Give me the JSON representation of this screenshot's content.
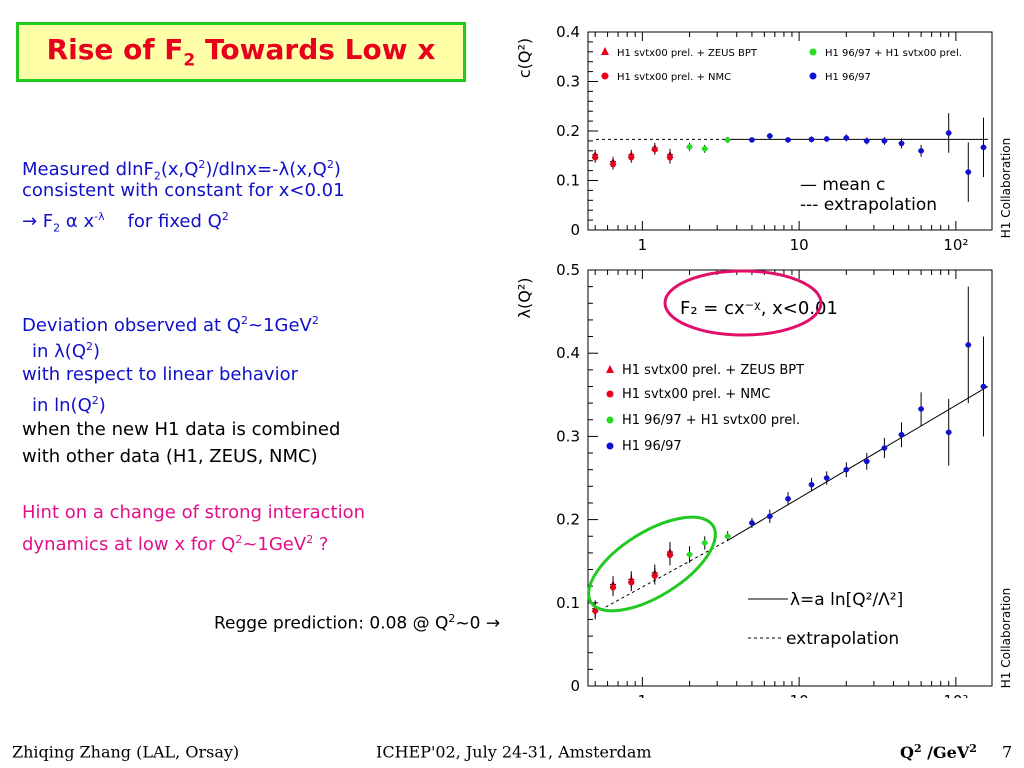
{
  "slide": {
    "title_main": "Rise of F",
    "title_sub": "2",
    "title_rest": " Towards Low x",
    "page_number": "7"
  },
  "text": {
    "p1_l1_a": "Measured dlnF",
    "p1_l1_b": "2",
    "p1_l1_c": "(x,Q",
    "p1_l1_d": "2",
    "p1_l1_e": ")/dlnx=-",
    "p1_l1_f": "λ",
    "p1_l1_g": "(x,Q",
    "p1_l1_h": "2",
    "p1_l1_i": ")",
    "p1_l2": "consistent with constant for x<0.01",
    "p1_l3_a": "→ F",
    "p1_l3_b": "2",
    "p1_l3_c": " α x",
    "p1_l3_d": "-λ",
    "p1_l3_e": "    for fixed Q",
    "p1_l3_f": "2",
    "p2_l1_a": "Deviation observed at Q",
    "p2_l1_b": "2",
    "p2_l1_c": "~1GeV",
    "p2_l1_d": "2",
    "p2_l2_a": "in ",
    "p2_l2_b": "λ",
    "p2_l2_c": "(Q",
    "p2_l2_d": "2",
    "p2_l2_e": ")",
    "p2_l3": "with respect to linear behavior",
    "p2_l4_a": "in ln(Q",
    "p2_l4_b": "2",
    "p2_l4_c": ")",
    "p2_l5": "when the new H1 data is combined",
    "p2_l6": "with other data (H1, ZEUS, NMC)",
    "p3_l1": "Hint on a change of strong interaction",
    "p3_l2_a": "dynamics at low x for Q",
    "p3_l2_b": "2",
    "p3_l2_c": "~1GeV",
    "p3_l2_d": "2",
    "p3_l2_e": " ?",
    "regge_a": "Regge prediction: 0.08 @ Q",
    "regge_b": "2",
    "regge_c": "~0 →"
  },
  "footer": {
    "author": "Zhiqing Zhang (LAL, Orsay)",
    "conference": "ICHEP'02, July 24-31, Amsterdam",
    "unit_a": "Q",
    "unit_b": "2",
    "unit_c": " /GeV",
    "unit_d": "2"
  },
  "colors": {
    "zeus": "#e8001c",
    "nmc": "#e8001c",
    "h1comb": "#22dd22",
    "h1": "#1010d0",
    "title": "#e8001c",
    "title_bg": "#ffffa8",
    "title_border": "#22c822",
    "ellipse_pink": "#e0106a",
    "ellipse_green": "#22c822"
  },
  "chart_data": [
    {
      "type": "scatter",
      "ylabel": "c(Q²)",
      "xscale": "log",
      "xlim": [
        0.45,
        170
      ],
      "ylim": [
        0,
        0.4
      ],
      "x_ticks": [
        "1",
        "10",
        "10²"
      ],
      "y_ticks": [
        "0",
        "0.1",
        "0.2",
        "0.3",
        "0.4"
      ],
      "collaboration": "H1 Collaboration",
      "legend": [
        "H1 svtx00 prel. + ZEUS BPT",
        "H1 svtx00 prel. + NMC",
        "H1 96/97 + H1 svtx00 prel.",
        "H1 96/97"
      ],
      "lines": [
        "— mean c",
        "--- extrapolation"
      ],
      "mean_c": 0.183,
      "series": [
        {
          "name": "H1 svtx00 prel. + ZEUS BPT",
          "marker": "triangle",
          "color": "#e8001c",
          "x": [
            0.5,
            0.65,
            0.85,
            1.2,
            1.5
          ],
          "y": [
            0.152,
            0.138,
            0.152,
            0.166,
            0.152
          ],
          "err": [
            0.01,
            0.01,
            0.01,
            0.01,
            0.012
          ]
        },
        {
          "name": "H1 svtx00 prel. + NMC",
          "marker": "circle",
          "color": "#e8001c",
          "x": [
            0.5,
            0.65,
            0.85,
            1.2,
            1.5
          ],
          "y": [
            0.146,
            0.132,
            0.146,
            0.162,
            0.146
          ],
          "err": [
            0.01,
            0.01,
            0.01,
            0.01,
            0.012
          ]
        },
        {
          "name": "H1 96/97 + H1 svtx00 prel.",
          "marker": "circle",
          "color": "#22dd22",
          "x": [
            2.0,
            2.5,
            3.5
          ],
          "y": [
            0.168,
            0.164,
            0.182
          ],
          "err": [
            0.008,
            0.008,
            0.006
          ]
        },
        {
          "name": "H1 96/97",
          "marker": "circle",
          "color": "#1010d0",
          "x": [
            5,
            6.5,
            8.5,
            12,
            15,
            20,
            27,
            35,
            45,
            60,
            90,
            120,
            150
          ],
          "y": [
            0.182,
            0.19,
            0.182,
            0.183,
            0.184,
            0.186,
            0.18,
            0.18,
            0.175,
            0.16,
            0.196,
            0.117,
            0.167
          ],
          "err": [
            0.005,
            0.006,
            0.005,
            0.006,
            0.006,
            0.007,
            0.007,
            0.008,
            0.01,
            0.012,
            0.04,
            0.06,
            0.06
          ]
        }
      ]
    },
    {
      "type": "scatter",
      "ylabel": "λ(Q²)",
      "xlabel": "Q² /GeV²",
      "xscale": "log",
      "xlim": [
        0.45,
        170
      ],
      "ylim": [
        0,
        0.5
      ],
      "x_ticks": [
        "1",
        "10",
        "10²"
      ],
      "y_ticks": [
        "0",
        "0.1",
        "0.2",
        "0.3",
        "0.4",
        "0.5"
      ],
      "collaboration": "H1 Collaboration",
      "formula": "F₂ = cx⁻ᵡ,  x<0.01",
      "legend": [
        "H1 svtx00 prel. + ZEUS BPT",
        "H1 svtx00 prel. + NMC",
        "H1 96/97 + H1 svtx00 prel.",
        "H1 96/97"
      ],
      "fit_label": "λ=a ln[Q²/Λ²]",
      "extrap_label": "extrapolation",
      "fit_line": {
        "x": [
          3.5,
          160
        ],
        "y": [
          0.175,
          0.36
        ]
      },
      "extrap_line": {
        "x": [
          0.5,
          3.5
        ],
        "y": [
          0.088,
          0.175
        ]
      },
      "series": [
        {
          "name": "H1 svtx00 prel. + ZEUS BPT",
          "marker": "triangle",
          "color": "#e8001c",
          "x": [
            0.5,
            0.65,
            0.85,
            1.2,
            1.5
          ],
          "y": [
            0.093,
            0.122,
            0.128,
            0.136,
            0.161
          ],
          "err": [
            0.01,
            0.01,
            0.01,
            0.01,
            0.012
          ]
        },
        {
          "name": "H1 svtx00 prel. + NMC",
          "marker": "circle",
          "color": "#e8001c",
          "x": [
            0.5,
            0.65,
            0.85,
            1.2,
            1.5
          ],
          "y": [
            0.09,
            0.118,
            0.124,
            0.132,
            0.157
          ],
          "err": [
            0.01,
            0.01,
            0.01,
            0.01,
            0.012
          ]
        },
        {
          "name": "H1 96/97 + H1 svtx00 prel.",
          "marker": "circle",
          "color": "#22dd22",
          "x": [
            2.0,
            2.5,
            3.5
          ],
          "y": [
            0.158,
            0.172,
            0.18
          ],
          "err": [
            0.01,
            0.008,
            0.006
          ]
        },
        {
          "name": "H1 96/97",
          "marker": "circle",
          "color": "#1010d0",
          "x": [
            5,
            6.5,
            8.5,
            12,
            15,
            20,
            27,
            35,
            45,
            60,
            90,
            120,
            150
          ],
          "y": [
            0.196,
            0.204,
            0.225,
            0.242,
            0.25,
            0.26,
            0.27,
            0.286,
            0.302,
            0.333,
            0.305,
            0.41,
            0.36
          ],
          "err": [
            0.006,
            0.008,
            0.008,
            0.008,
            0.008,
            0.009,
            0.01,
            0.012,
            0.015,
            0.02,
            0.04,
            0.07,
            0.06
          ]
        }
      ]
    }
  ]
}
